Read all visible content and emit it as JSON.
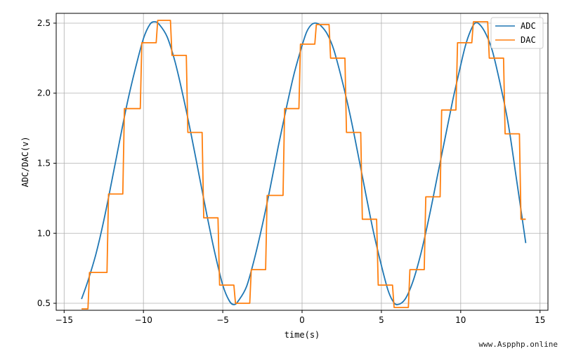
{
  "chart_data": {
    "type": "line",
    "title": "",
    "xlabel": "time(s)",
    "ylabel": "ADC/DAC(v)",
    "xlim": [
      -15.5,
      15.5
    ],
    "ylim": [
      0.45,
      2.57
    ],
    "xticks": [
      -15,
      -10,
      -5,
      0,
      5,
      10,
      15
    ],
    "xtick_labels": [
      "−15",
      "−10",
      "−5",
      "0",
      "5",
      "10",
      "15"
    ],
    "yticks": [
      0.5,
      1.0,
      1.5,
      2.0,
      2.5
    ],
    "ytick_labels": [
      "0.5",
      "1.0",
      "1.5",
      "2.0",
      "2.5"
    ],
    "grid": true,
    "legend_position": "top-right",
    "series": [
      {
        "name": "ADC",
        "color": "#1f77b4",
        "style": "smooth",
        "x": [
          -13.9,
          -13.5,
          -13.0,
          -12.5,
          -12.0,
          -11.5,
          -11.0,
          -10.5,
          -10.0,
          -9.6,
          -9.3,
          -9.0,
          -8.5,
          -8.0,
          -7.5,
          -7.0,
          -6.5,
          -6.0,
          -5.5,
          -5.0,
          -4.6,
          -4.3,
          -4.0,
          -3.5,
          -3.0,
          -2.5,
          -2.0,
          -1.5,
          -1.0,
          -0.5,
          0.0,
          0.3,
          0.6,
          0.9,
          1.2,
          1.6,
          2.0,
          2.5,
          3.0,
          3.5,
          4.0,
          4.5,
          5.0,
          5.4,
          5.7,
          6.0,
          6.5,
          7.0,
          7.5,
          8.0,
          8.5,
          9.0,
          9.5,
          10.0,
          10.3,
          10.6,
          10.9,
          11.2,
          11.6,
          12.0,
          12.5,
          13.0,
          13.5,
          14.1
        ],
        "y": [
          0.53,
          0.66,
          0.85,
          1.09,
          1.37,
          1.66,
          1.94,
          2.18,
          2.39,
          2.49,
          2.51,
          2.49,
          2.4,
          2.22,
          1.98,
          1.71,
          1.42,
          1.13,
          0.86,
          0.63,
          0.52,
          0.49,
          0.52,
          0.62,
          0.82,
          1.06,
          1.33,
          1.62,
          1.89,
          2.14,
          2.34,
          2.44,
          2.49,
          2.5,
          2.48,
          2.42,
          2.31,
          2.1,
          1.86,
          1.58,
          1.29,
          1.01,
          0.77,
          0.6,
          0.52,
          0.49,
          0.53,
          0.66,
          0.86,
          1.11,
          1.39,
          1.67,
          1.95,
          2.2,
          2.34,
          2.44,
          2.5,
          2.49,
          2.42,
          2.3,
          2.06,
          1.78,
          1.4,
          0.93
        ]
      },
      {
        "name": "DAC",
        "color": "#ff7f0e",
        "style": "step",
        "x": [
          -13.9,
          -13.5,
          -13.4,
          -12.3,
          -12.2,
          -11.3,
          -11.2,
          -10.2,
          -10.1,
          -9.2,
          -9.1,
          -8.3,
          -8.2,
          -7.3,
          -7.2,
          -6.3,
          -6.2,
          -5.3,
          -5.2,
          -4.3,
          -4.2,
          -3.3,
          -3.2,
          -2.3,
          -2.2,
          -1.2,
          -1.1,
          -0.2,
          -0.1,
          0.8,
          0.9,
          1.7,
          1.8,
          2.7,
          2.8,
          3.7,
          3.8,
          4.7,
          4.8,
          5.7,
          5.8,
          6.7,
          6.8,
          7.7,
          7.8,
          8.7,
          8.8,
          9.7,
          9.8,
          10.7,
          10.8,
          11.7,
          11.8,
          12.7,
          12.8,
          13.7,
          13.8,
          14.1
        ],
        "y": [
          0.46,
          0.46,
          0.72,
          0.72,
          1.28,
          1.28,
          1.89,
          1.89,
          2.36,
          2.36,
          2.52,
          2.52,
          2.27,
          2.27,
          1.72,
          1.72,
          1.11,
          1.11,
          0.63,
          0.63,
          0.5,
          0.5,
          0.74,
          0.74,
          1.27,
          1.27,
          1.89,
          1.89,
          2.35,
          2.35,
          2.49,
          2.49,
          2.25,
          2.25,
          1.72,
          1.72,
          1.1,
          1.1,
          0.63,
          0.63,
          0.47,
          0.47,
          0.74,
          0.74,
          1.26,
          1.26,
          1.88,
          1.88,
          2.36,
          2.36,
          2.51,
          2.51,
          2.25,
          2.25,
          1.71,
          1.71,
          1.1,
          1.1
        ]
      }
    ]
  },
  "watermark": "www.Aspphp.online"
}
